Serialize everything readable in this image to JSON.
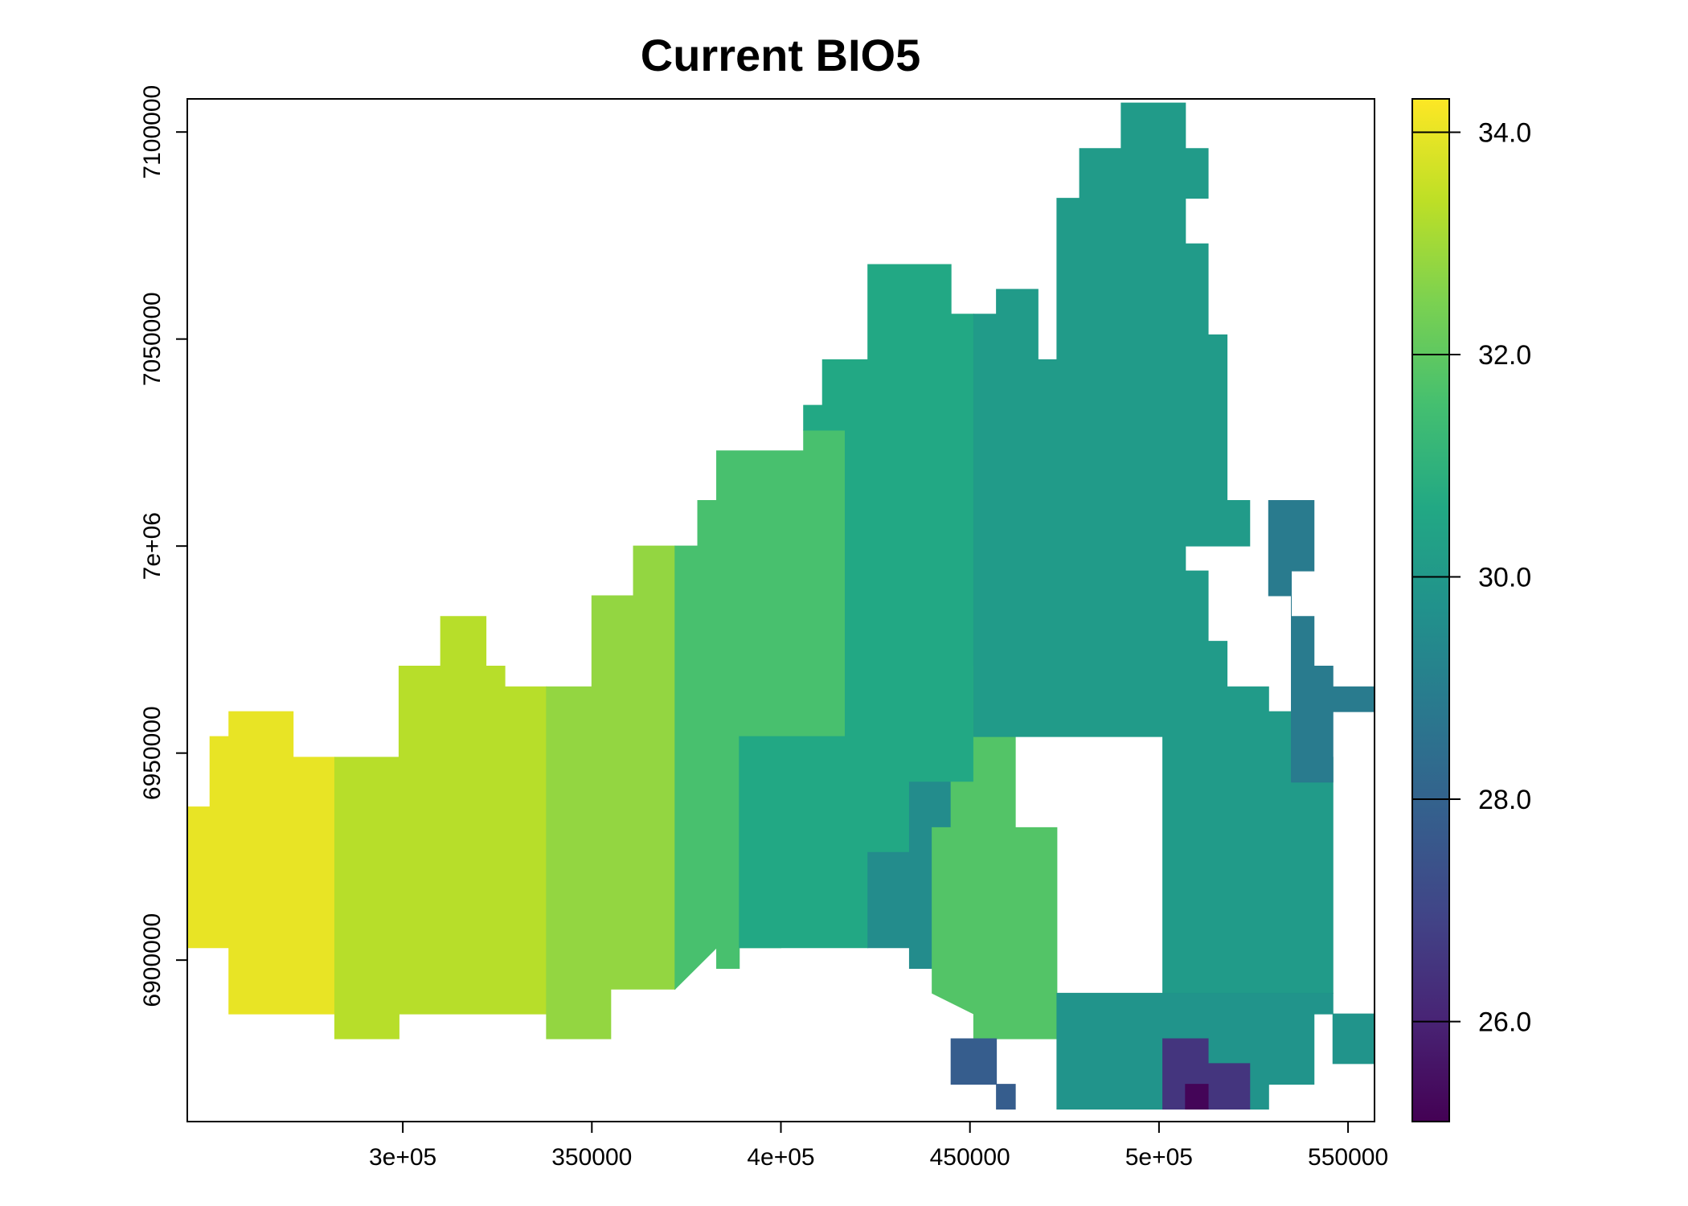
{
  "chart_data": {
    "type": "heatmap",
    "title": "Current BIO5",
    "xlabel": "",
    "ylabel": "",
    "xlim": [
      243000,
      557000
    ],
    "ylim": [
      6861000,
      7108000
    ],
    "x_ticks": [
      {
        "value": 300000,
        "label": "3e+05"
      },
      {
        "value": 350000,
        "label": "350000"
      },
      {
        "value": 400000,
        "label": "4e+05"
      },
      {
        "value": 450000,
        "label": "450000"
      },
      {
        "value": 500000,
        "label": "5e+05"
      },
      {
        "value": 550000,
        "label": "550000"
      }
    ],
    "y_ticks": [
      {
        "value": 6900000,
        "label": "6900000"
      },
      {
        "value": 6950000,
        "label": "6950000"
      },
      {
        "value": 7000000,
        "label": "7e+06"
      },
      {
        "value": 7050000,
        "label": "7050000"
      },
      {
        "value": 7100000,
        "label": "7100000"
      }
    ],
    "legend": {
      "min": 25.1,
      "max": 34.3,
      "ticks": [
        {
          "value": 26.0,
          "label": "26.0"
        },
        {
          "value": 28.0,
          "label": "28.0"
        },
        {
          "value": 30.0,
          "label": "30.0"
        },
        {
          "value": 32.0,
          "label": "32.0"
        },
        {
          "value": 34.0,
          "label": "34.0"
        }
      ],
      "colormap": "viridis",
      "placement": "right"
    },
    "grid": false,
    "raster": {
      "cell_size": 5600,
      "description_values": "Raster cells are given as regions of approximate BIO5 values (deg C) read from the color scale",
      "regions": [
        {
          "name": "west-yellow",
          "value": 34.0,
          "polygon": [
            [
              243000,
              6903000
            ],
            [
              243000,
              6937000
            ],
            [
              249000,
              6937000
            ],
            [
              249000,
              6954000
            ],
            [
              254000,
              6954000
            ],
            [
              254000,
              6960000
            ],
            [
              271000,
              6960000
            ],
            [
              271000,
              6949000
            ],
            [
              282000,
              6949000
            ],
            [
              282000,
              6887000
            ],
            [
              254000,
              6887000
            ],
            [
              254000,
              6903000
            ]
          ]
        },
        {
          "name": "west-yellowgreen",
          "value": 33.3,
          "polygon": [
            [
              282000,
              6881000
            ],
            [
              282000,
              6949000
            ],
            [
              299000,
              6949000
            ],
            [
              299000,
              6971000
            ],
            [
              310000,
              6971000
            ],
            [
              310000,
              6983000
            ],
            [
              322000,
              6983000
            ],
            [
              322000,
              6971000
            ],
            [
              327000,
              6971000
            ],
            [
              327000,
              6966000
            ],
            [
              338000,
              6966000
            ],
            [
              338000,
              6887000
            ],
            [
              299000,
              6887000
            ],
            [
              299000,
              6881000
            ]
          ]
        },
        {
          "name": "central-west-lime",
          "value": 32.8,
          "polygon": [
            [
              338000,
              6881000
            ],
            [
              338000,
              6966000
            ],
            [
              350000,
              6966000
            ],
            [
              350000,
              6988000
            ],
            [
              361000,
              6988000
            ],
            [
              361000,
              7000000
            ],
            [
              372000,
              7000000
            ],
            [
              372000,
              6893000
            ],
            [
              355000,
              6893000
            ],
            [
              355000,
              6881000
            ]
          ]
        },
        {
          "name": "central-green",
          "value": 31.6,
          "polygon": [
            [
              372000,
              6893000
            ],
            [
              372000,
              7000000
            ],
            [
              378000,
              7000000
            ],
            [
              378000,
              7011000
            ],
            [
              383000,
              7011000
            ],
            [
              383000,
              7023000
            ],
            [
              406000,
              7023000
            ],
            [
              406000,
              7028000
            ],
            [
              417000,
              7028000
            ],
            [
              417000,
              6954000
            ],
            [
              400000,
              6954000
            ],
            [
              400000,
              6903000
            ],
            [
              389000,
              6903000
            ],
            [
              389000,
              6898000
            ],
            [
              383000,
              6898000
            ],
            [
              383000,
              6903000
            ]
          ]
        },
        {
          "name": "central-teal",
          "value": 30.6,
          "polygon": [
            [
              389000,
              6903000
            ],
            [
              389000,
              6954000
            ],
            [
              417000,
              6954000
            ],
            [
              417000,
              7028000
            ],
            [
              406000,
              7028000
            ],
            [
              406000,
              7034000
            ],
            [
              411000,
              7034000
            ],
            [
              411000,
              7045000
            ],
            [
              423000,
              7045000
            ],
            [
              423000,
              7068000
            ],
            [
              445000,
              7068000
            ],
            [
              445000,
              7056000
            ],
            [
              451000,
              7056000
            ],
            [
              451000,
              6943000
            ],
            [
              434000,
              6943000
            ],
            [
              434000,
              6926000
            ],
            [
              423000,
              6926000
            ],
            [
              423000,
              6903000
            ]
          ]
        },
        {
          "name": "central-blue-teal",
          "value": 29.5,
          "polygon": [
            [
              423000,
              6903000
            ],
            [
              423000,
              6926000
            ],
            [
              434000,
              6926000
            ],
            [
              434000,
              6943000
            ],
            [
              445000,
              6943000
            ],
            [
              445000,
              6932000
            ],
            [
              440000,
              6932000
            ],
            [
              440000,
              6898000
            ],
            [
              434000,
              6898000
            ],
            [
              434000,
              6903000
            ]
          ]
        },
        {
          "name": "south-central-green",
          "value": 31.8,
          "polygon": [
            [
              440000,
              6892000
            ],
            [
              440000,
              6932000
            ],
            [
              445000,
              6932000
            ],
            [
              445000,
              6943000
            ],
            [
              451000,
              6943000
            ],
            [
              451000,
              6971000
            ],
            [
              462000,
              6971000
            ],
            [
              462000,
              6932000
            ],
            [
              473000,
              6932000
            ],
            [
              473000,
              6881000
            ],
            [
              451000,
              6881000
            ],
            [
              451000,
              6887000
            ]
          ]
        },
        {
          "name": "north-east-teal",
          "value": 30.1,
          "polygon": [
            [
              451000,
              6954000
            ],
            [
              451000,
              7056000
            ],
            [
              457000,
              7056000
            ],
            [
              457000,
              7062000
            ],
            [
              468000,
              7062000
            ],
            [
              468000,
              7045000
            ],
            [
              473000,
              7045000
            ],
            [
              473000,
              7084000
            ],
            [
              479000,
              7084000
            ],
            [
              479000,
              7096000
            ],
            [
              490000,
              7096000
            ],
            [
              490000,
              7107000
            ],
            [
              507000,
              7107000
            ],
            [
              507000,
              7096000
            ],
            [
              513000,
              7096000
            ],
            [
              513000,
              7084000
            ],
            [
              507000,
              7084000
            ],
            [
              507000,
              7073000
            ],
            [
              513000,
              7073000
            ],
            [
              513000,
              7051000
            ],
            [
              518000,
              7051000
            ],
            [
              518000,
              7011000
            ],
            [
              524000,
              7011000
            ],
            [
              524000,
              7000000
            ],
            [
              507000,
              7000000
            ],
            [
              507000,
              6994000
            ],
            [
              513000,
              6994000
            ],
            [
              513000,
              6977000
            ],
            [
              518000,
              6977000
            ],
            [
              518000,
              6966000
            ],
            [
              529000,
              6966000
            ],
            [
              529000,
              6960000
            ],
            [
              541000,
              6960000
            ],
            [
              541000,
              6949000
            ],
            [
              546000,
              6949000
            ],
            [
              546000,
              6892000
            ],
            [
              501000,
              6892000
            ],
            [
              501000,
              6954000
            ]
          ]
        },
        {
          "name": "east-blue",
          "value": 28.9,
          "polygon": [
            [
              529000,
              6988000
            ],
            [
              529000,
              7011000
            ],
            [
              541000,
              7011000
            ],
            [
              541000,
              6994000
            ],
            [
              535000,
              6994000
            ],
            [
              535000,
              6983000
            ],
            [
              541000,
              6983000
            ],
            [
              541000,
              6971000
            ],
            [
              546000,
              6971000
            ],
            [
              546000,
              6966000
            ],
            [
              557000,
              6966000
            ],
            [
              557000,
              6960000
            ],
            [
              546000,
              6960000
            ],
            [
              546000,
              6943000
            ],
            [
              535000,
              6943000
            ],
            [
              535000,
              6988000
            ]
          ]
        },
        {
          "name": "south-east-teal",
          "value": 29.8,
          "polygon": [
            [
              473000,
              6864000
            ],
            [
              473000,
              6892000
            ],
            [
              546000,
              6892000
            ],
            [
              546000,
              6875000
            ],
            [
              557000,
              6875000
            ],
            [
              557000,
              6887000
            ],
            [
              541000,
              6887000
            ],
            [
              541000,
              6870000
            ],
            [
              529000,
              6870000
            ],
            [
              529000,
              6864000
            ],
            [
              501000,
              6864000
            ]
          ]
        },
        {
          "name": "south-east-purple",
          "value": 26.5,
          "polygon": [
            [
              501000,
              6864000
            ],
            [
              501000,
              6881000
            ],
            [
              513000,
              6881000
            ],
            [
              513000,
              6875000
            ],
            [
              524000,
              6875000
            ],
            [
              524000,
              6864000
            ]
          ]
        },
        {
          "name": "south-east-dark",
          "value": 25.2,
          "polygon": [
            [
              507000,
              6864000
            ],
            [
              507000,
              6870000
            ],
            [
              513000,
              6870000
            ],
            [
              513000,
              6864000
            ]
          ]
        },
        {
          "name": "south-blue-patch",
          "value": 27.8,
          "polygon": [
            [
              445000,
              6870000
            ],
            [
              445000,
              6881000
            ],
            [
              457000,
              6881000
            ],
            [
              457000,
              6864000
            ],
            [
              462000,
              6864000
            ],
            [
              462000,
              6870000
            ]
          ]
        }
      ]
    }
  }
}
